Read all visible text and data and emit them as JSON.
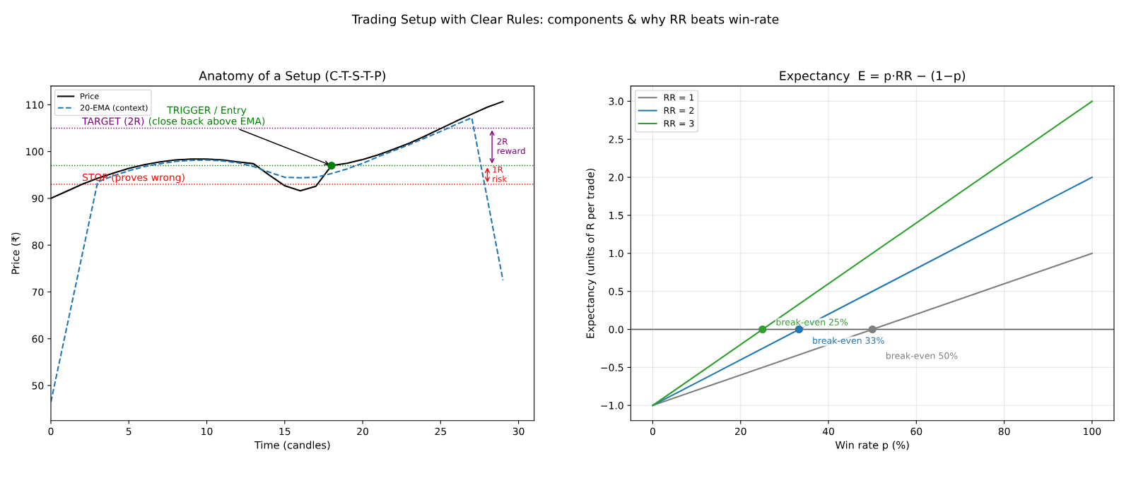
{
  "chart_data": [
    {
      "type": "line",
      "title": "Anatomy of a Setup (C-T-S-T-P)",
      "xlabel": "Time (candles)",
      "ylabel": "Price (₹)",
      "xlim": [
        0,
        31
      ],
      "ylim": [
        42.5,
        114
      ],
      "xticks": [
        0,
        5,
        10,
        15,
        20,
        25,
        30
      ],
      "yticks": [
        50,
        60,
        70,
        80,
        90,
        100,
        110
      ],
      "legend": "top left",
      "grid": false,
      "series": [
        {
          "name": "Price",
          "color": "#000000",
          "line_style": "solid",
          "x": [
            0,
            1,
            2,
            3,
            4,
            5,
            6,
            7,
            8,
            9,
            10,
            11,
            12,
            13,
            14,
            15,
            16,
            17,
            18,
            19,
            20,
            21,
            22,
            23,
            24,
            25,
            26,
            27,
            28,
            29
          ],
          "values": [
            90,
            91.5,
            93,
            94.3,
            95.4,
            96.4,
            97.2,
            97.8,
            98.2,
            98.4,
            98.4,
            98.2,
            97.8,
            97.4,
            95,
            92.7,
            91.6,
            92.6,
            97,
            97.5,
            98.3,
            99.3,
            100.5,
            101.8,
            103.3,
            104.9,
            106.5,
            108,
            109.5,
            110.7
          ]
        },
        {
          "name": "20-EMA (context)",
          "color": "#1f77b4",
          "line_style": "dashed",
          "x": [
            0,
            3,
            4,
            5,
            6,
            7,
            8,
            9,
            10,
            11,
            12,
            13,
            14,
            15,
            16,
            17,
            18,
            19,
            20,
            21,
            22,
            23,
            24,
            25,
            26,
            27,
            29
          ],
          "values": [
            46.5,
            93.5,
            94.8,
            95.9,
            96.8,
            97.4,
            97.9,
            98.1,
            98.2,
            98,
            97.6,
            96.8,
            95.6,
            94.5,
            94.4,
            94.5,
            95.3,
            96.3,
            97.5,
            98.9,
            100.2,
            101.5,
            102.9,
            104.3,
            105.8,
            107.2,
            72.5
          ]
        },
        {
          "type": "scatter",
          "color": "#008000",
          "marker": "circle",
          "x": [
            18
          ],
          "values": [
            97
          ]
        }
      ],
      "ref_lines": [
        {
          "axis": "y",
          "value": 105,
          "label": "TARGET (2R)",
          "color": "#800080",
          "line_style": "dotted"
        },
        {
          "axis": "y",
          "value": 97,
          "color": "#008000",
          "line_style": "dotted"
        },
        {
          "axis": "y",
          "value": 93,
          "label": "STOP (proves wrong)",
          "color": "#ff0000",
          "line_style": "dotted"
        }
      ],
      "annotations": [
        "Trading Setup with Clear Rules: components & why RR beats win-rate",
        {
          "text": "TRIGGER / Entry\n(close back above EMA)",
          "x": 18,
          "y": 97
        },
        "2R\nreward",
        "1R\nrisk"
      ]
    },
    {
      "type": "line",
      "title": "Expectancy  E = p·RR − (1−p)",
      "xlabel": "Win rate p (%)",
      "ylabel": "Expectancy (units of R per trade)",
      "xlim": [
        -5,
        105
      ],
      "ylim": [
        -1.2,
        3.2
      ],
      "xticks": [
        0,
        20,
        40,
        60,
        80,
        100
      ],
      "yticks": [
        {
          "value": -1,
          "label": "−1.0"
        },
        {
          "value": -0.5,
          "label": "−0.5"
        },
        {
          "value": 0,
          "label": "0.0"
        },
        {
          "value": 0.5,
          "label": "0.5"
        },
        {
          "value": 1,
          "label": "1.0"
        },
        {
          "value": 1.5,
          "label": "1.5"
        },
        {
          "value": 2,
          "label": "2.0"
        },
        {
          "value": 2.5,
          "label": "2.5"
        },
        {
          "value": 3,
          "label": "3.0"
        }
      ],
      "legend": "top left",
      "grid": true,
      "series": [
        {
          "name": "RR = 1",
          "color": "#7f7f7f",
          "x": [
            0,
            100
          ],
          "values": [
            -1,
            1
          ]
        },
        {
          "name": "RR = 2",
          "color": "#1f77b4",
          "x": [
            0,
            100
          ],
          "values": [
            -1,
            2
          ]
        },
        {
          "name": "RR = 3",
          "color": "#2ca02c",
          "x": [
            0,
            100
          ],
          "values": [
            -1,
            3
          ]
        },
        {
          "type": "scatter",
          "color": "#2ca02c",
          "marker": "circle",
          "x": [
            25
          ],
          "values": [
            0
          ]
        },
        {
          "type": "scatter",
          "color": "#1f77b4",
          "marker": "circle",
          "x": [
            33.3
          ],
          "values": [
            0
          ]
        },
        {
          "type": "scatter",
          "color": "#7f7f7f",
          "marker": "circle",
          "x": [
            50
          ],
          "values": [
            0
          ]
        }
      ],
      "ref_lines": [
        {
          "axis": "y",
          "value": 0,
          "color": "#333333",
          "line_style": "solid"
        }
      ],
      "annotations": [
        "break-even 25%",
        "break-even 33%",
        "break-even 50%"
      ]
    }
  ]
}
